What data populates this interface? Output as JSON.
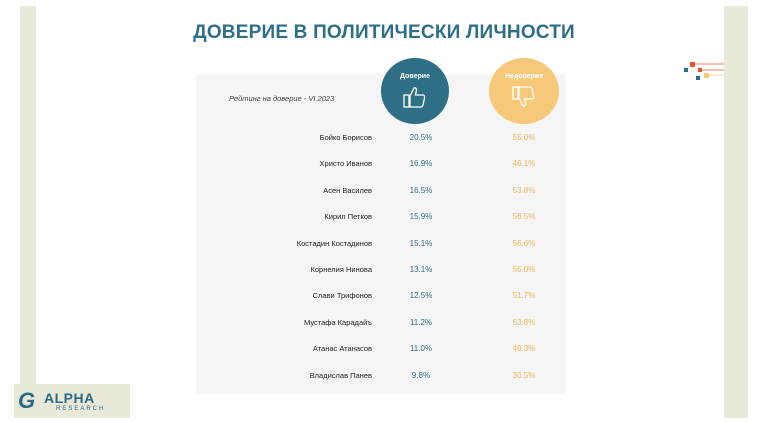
{
  "title": "ДОВЕРИЕ В ПОЛИТИЧЕСКИ ЛИЧНОСТИ",
  "subtitle": "Рейтинг на доверие - VI.2023",
  "legend": {
    "trust": "Доверие",
    "distrust": "Недоверие"
  },
  "colors": {
    "trust": "#2f6f86",
    "distrust": "#f7c77a",
    "title": "#2e6e87"
  },
  "chart_data": {
    "type": "table",
    "title": "ДОВЕРИЕ В ПОЛИТИЧЕСКИ ЛИЧНОСТИ",
    "subtitle": "Рейтинг на доверие - VI.2023",
    "columns": [
      "Доверие",
      "Недоверие"
    ],
    "rows": [
      {
        "name": "Бойко Борисов",
        "trust": "20.5%",
        "distrust": "55.0%"
      },
      {
        "name": "Христо Иванов",
        "trust": "16.9%",
        "distrust": "46.1%"
      },
      {
        "name": "Асен Василев",
        "trust": "16.5%",
        "distrust": "53.8%"
      },
      {
        "name": "Кирил Петков",
        "trust": "15.9%",
        "distrust": "56.5%"
      },
      {
        "name": "Костадин Костадинов",
        "trust": "15.1%",
        "distrust": "56.6%"
      },
      {
        "name": "Корнелия Нинова",
        "trust": "13.1%",
        "distrust": "55.0%"
      },
      {
        "name": "Слави Трифонов",
        "trust": "12.5%",
        "distrust": "51.7%"
      },
      {
        "name": "Мустафа Карадайъ",
        "trust": "11.2%",
        "distrust": "53.8%"
      },
      {
        "name": "Атанас Атанасов",
        "trust": "11.0%",
        "distrust": "49.3%"
      },
      {
        "name": "Владислав Панев",
        "trust": "9.8%",
        "distrust": "30.5%"
      }
    ]
  },
  "logo": {
    "main": "ALPHA",
    "sub": "RESEARCH",
    "mark": "G"
  },
  "icons": {
    "trust": "thumbs-up-icon",
    "distrust": "thumbs-down-icon",
    "deco": "decorative-squares-icon"
  }
}
